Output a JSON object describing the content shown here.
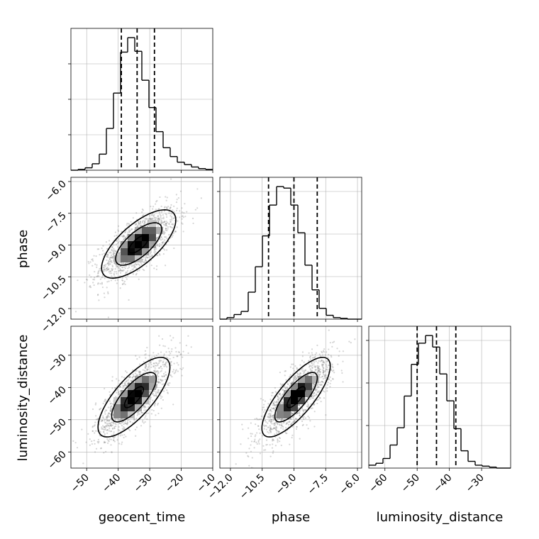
{
  "chart_data": {
    "type": "corner",
    "parameters": [
      {
        "key": "geocent_time",
        "label": "geocent_time",
        "range": [
          -55,
          -10
        ],
        "ticks": [
          -50,
          -40,
          -30,
          -20,
          -10
        ],
        "tick_labels": [
          "−50",
          "−40",
          "−30",
          "−20",
          "−10"
        ],
        "quantiles": [
          -39,
          -34,
          -28.5
        ]
      },
      {
        "key": "phase",
        "label": "phase",
        "range": [
          -12.5,
          -5.8
        ],
        "ticks": [
          -12.0,
          -10.5,
          -9.0,
          -7.5,
          -6.0
        ],
        "tick_labels": [
          "−12.0",
          "−10.5",
          "−9.0",
          "−7.5",
          "−6.0"
        ],
        "quantiles": [
          -10.2,
          -9.0,
          -7.9
        ]
      },
      {
        "key": "luminosity_distance",
        "label": "luminosity_distance",
        "range": [
          -65,
          -21
        ],
        "ticks": [
          -60,
          -50,
          -40,
          -30
        ],
        "tick_labels": [
          "−60",
          "−50",
          "−40",
          "−30"
        ],
        "quantiles": [
          -50,
          -44,
          -38
        ]
      }
    ],
    "histograms": {
      "geocent_time": {
        "bin_edges": [
          -55.0,
          -52.75,
          -50.5,
          -48.25,
          -46.0,
          -43.75,
          -41.5,
          -39.25,
          -37.0,
          -34.75,
          -32.5,
          -30.25,
          -28.0,
          -25.75,
          -23.5,
          -21.25,
          -19.0,
          -16.75,
          -14.5,
          -12.25,
          -10.0
        ],
        "counts": [
          0,
          1,
          3,
          8,
          20,
          52,
          96,
          147,
          165,
          148,
          112,
          78,
          48,
          28,
          17,
          10,
          7,
          4,
          2,
          1
        ],
        "ytick_fracs": [
          0.25,
          0.5,
          0.75
        ]
      },
      "phase": {
        "bin_edges": [
          -12.5,
          -12.165,
          -11.83,
          -11.495,
          -11.16,
          -10.825,
          -10.49,
          -10.155,
          -9.82,
          -9.485,
          -9.15,
          -8.815,
          -8.48,
          -8.145,
          -7.81,
          -7.475,
          -7.14,
          -6.805,
          -6.47,
          -6.135,
          -5.8
        ],
        "counts": [
          0,
          2,
          6,
          10,
          35,
          68,
          108,
          148,
          172,
          170,
          148,
          112,
          70,
          38,
          14,
          5,
          2,
          1,
          0,
          0
        ],
        "ytick_fracs": [
          0.3,
          0.6,
          0.9
        ]
      },
      "luminosity_distance": {
        "bin_edges": [
          -65.0,
          -62.8,
          -60.6,
          -58.4,
          -56.2,
          -54.0,
          -51.8,
          -49.6,
          -47.4,
          -45.2,
          -43.0,
          -40.8,
          -38.6,
          -36.4,
          -34.2,
          -32.0,
          -29.8,
          -27.6,
          -25.4,
          -23.2,
          -21.0
        ],
        "counts": [
          3,
          5,
          10,
          24,
          42,
          75,
          108,
          130,
          138,
          126,
          98,
          70,
          41,
          18,
          7,
          3,
          2,
          1,
          0,
          0
        ],
        "ytick_fracs": [
          0.3,
          0.6,
          0.9
        ]
      }
    },
    "pairs": [
      {
        "x": "geocent_time",
        "y": "phase",
        "mean": [
          -33.5,
          -8.95
        ],
        "std": [
          6.2,
          0.85
        ],
        "corr": 0.7
      },
      {
        "x": "geocent_time",
        "y": "luminosity_distance",
        "mean": [
          -35.0,
          -43.0
        ],
        "std": [
          6.0,
          6.5
        ],
        "corr": 0.75
      },
      {
        "x": "phase",
        "y": "luminosity_distance",
        "mean": [
          -8.9,
          -43.0
        ],
        "std": [
          0.85,
          6.5
        ],
        "corr": 0.78
      }
    ],
    "contour_levels": [
      0.5,
      1.18,
      1.9
    ],
    "samples_drawn": 1400,
    "grid": true,
    "colors": {
      "hist_line": "#000000",
      "contour": "#000000",
      "scatter": "#888888",
      "grid": "#b0b0b0",
      "quantile_line": "#000000"
    }
  }
}
